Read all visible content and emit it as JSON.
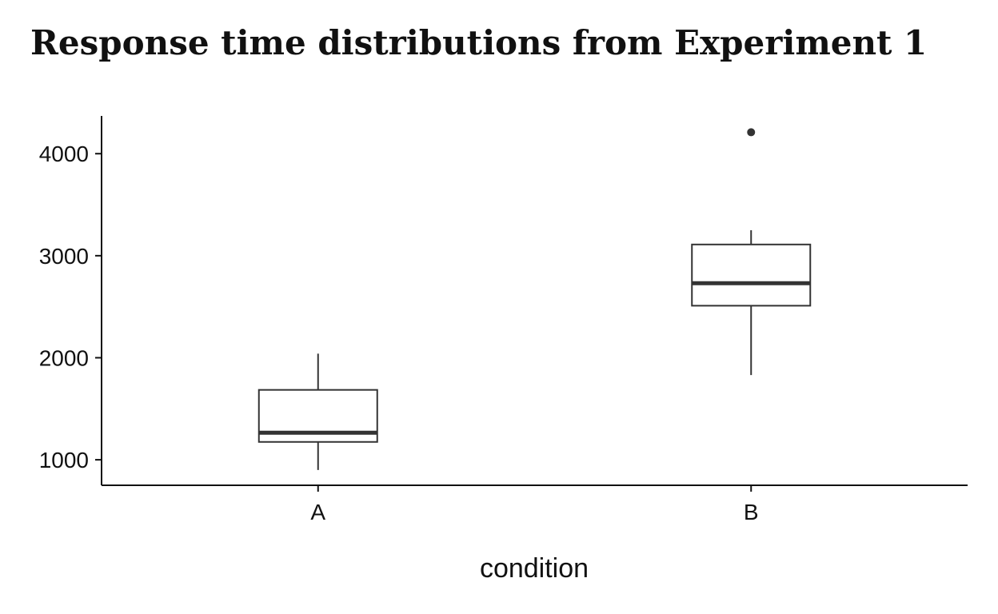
{
  "chart_data": {
    "type": "box",
    "title": "Response time distributions from Experiment 1",
    "xlabel": "condition",
    "ylabel": "",
    "categories": [
      "A",
      "B"
    ],
    "ylim": [
      750,
      4370
    ],
    "yticks": [
      1000,
      2000,
      3000,
      4000
    ],
    "grid": false,
    "legend": "none",
    "series": [
      {
        "category": "A",
        "whisker_low": 900,
        "q1": 1175,
        "median": 1265,
        "q3": 1685,
        "whisker_high": 2040,
        "outliers": []
      },
      {
        "category": "B",
        "whisker_low": 1830,
        "q1": 2510,
        "median": 2730,
        "q3": 3110,
        "whisker_high": 3250,
        "outliers": [
          4210
        ]
      }
    ],
    "colors": {
      "box_line": "#333333",
      "box_fill": "#ffffff",
      "axis": "#111111",
      "outlier": "#333333"
    }
  }
}
